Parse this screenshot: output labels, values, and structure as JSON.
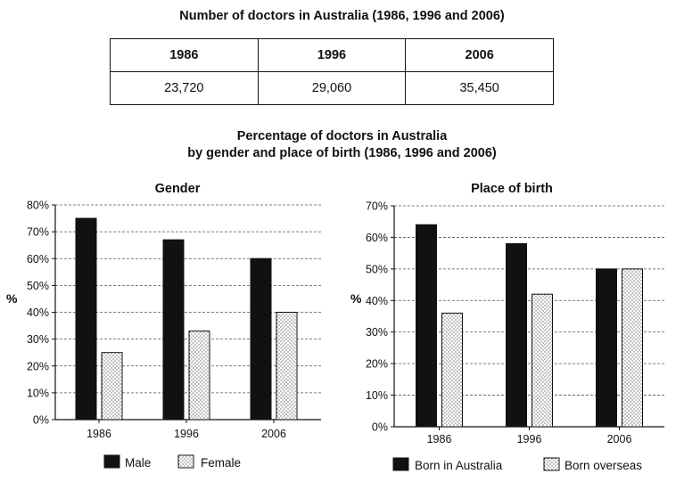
{
  "table": {
    "title": "Number of doctors in Australia (1986, 1996 and 2006)",
    "headers": [
      "1986",
      "1996",
      "2006"
    ],
    "values": [
      "23,720",
      "29,060",
      "35,450"
    ]
  },
  "section": {
    "title_line1": "Percentage of doctors in Australia",
    "title_line2": "by gender and place of birth (1986, 1996 and 2006)"
  },
  "chart_data": [
    {
      "type": "bar",
      "title": "Gender",
      "ylabel": "%",
      "categories": [
        "1986",
        "1996",
        "2006"
      ],
      "ylim": [
        0,
        80
      ],
      "yticks": [
        "0%",
        "10%",
        "20%",
        "30%",
        "40%",
        "50%",
        "60%",
        "70%",
        "80%"
      ],
      "grid": true,
      "legend": "bottom",
      "series": [
        {
          "name": "Male",
          "values": [
            75,
            67,
            60
          ],
          "pattern": "solid"
        },
        {
          "name": "Female",
          "values": [
            25,
            33,
            40
          ],
          "pattern": "dotted"
        }
      ]
    },
    {
      "type": "bar",
      "title": "Place of birth",
      "ylabel": "%",
      "categories": [
        "1986",
        "1996",
        "2006"
      ],
      "ylim": [
        0,
        70
      ],
      "yticks": [
        "0%",
        "10%",
        "20%",
        "30%",
        "40%",
        "50%",
        "60%",
        "70%"
      ],
      "grid": true,
      "legend": "bottom",
      "series": [
        {
          "name": "Born in Australia",
          "values": [
            64,
            58,
            50
          ],
          "pattern": "solid"
        },
        {
          "name": "Born overseas",
          "values": [
            36,
            42,
            50
          ],
          "pattern": "dotted"
        }
      ]
    }
  ]
}
